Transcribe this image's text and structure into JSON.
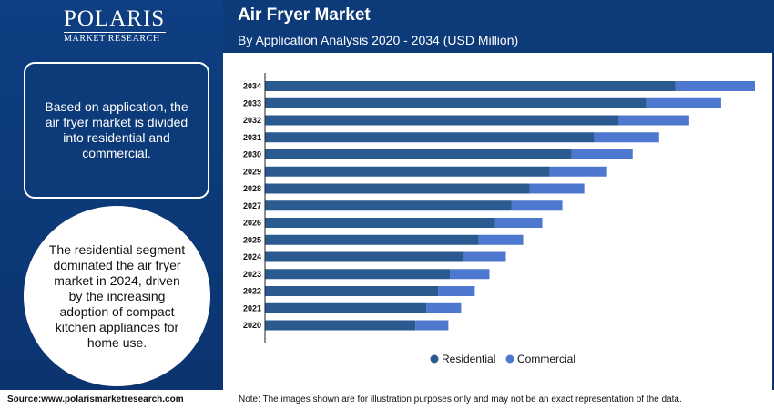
{
  "brand": {
    "name": "POLARIS",
    "tagline": "MARKET RESEARCH"
  },
  "header": {
    "title": "Air Fryer Market",
    "subtitle": "By Application Analysis 2020 - 2034 (USD Million)"
  },
  "sidebar": {
    "box_text": "Based on application, the air fryer market is divided into residential and commercial.",
    "circle_text": "The residential segment dominated the air fryer market in 2024, driven by the increasing adoption of compact kitchen appliances for home use."
  },
  "footer": {
    "source": "Source:www.polarismarketresearch.com",
    "note": "Note: The images shown are for illustration purposes only and may not be an exact representation of the data."
  },
  "colors": {
    "residential": "#2a5a8f",
    "commercial": "#4e78cf"
  },
  "chart_data": {
    "type": "bar",
    "orientation": "horizontal",
    "stacked": true,
    "categories": [
      "2034",
      "2033",
      "2032",
      "2031",
      "2030",
      "2029",
      "2028",
      "2027",
      "2026",
      "2025",
      "2024",
      "2023",
      "2022",
      "2021",
      "2020"
    ],
    "series": [
      {
        "name": "Residential",
        "values": [
          450,
          418,
          388,
          361,
          336,
          312,
          290,
          270,
          252,
          234,
          218,
          203,
          190,
          177,
          165
        ]
      },
      {
        "name": "Commercial",
        "values": [
          87,
          82,
          77,
          71,
          67,
          63,
          60,
          56,
          52,
          49,
          46,
          43,
          40,
          38,
          36
        ]
      }
    ],
    "xlabel": "",
    "ylabel": "",
    "grid": false,
    "legend": "bottom"
  }
}
